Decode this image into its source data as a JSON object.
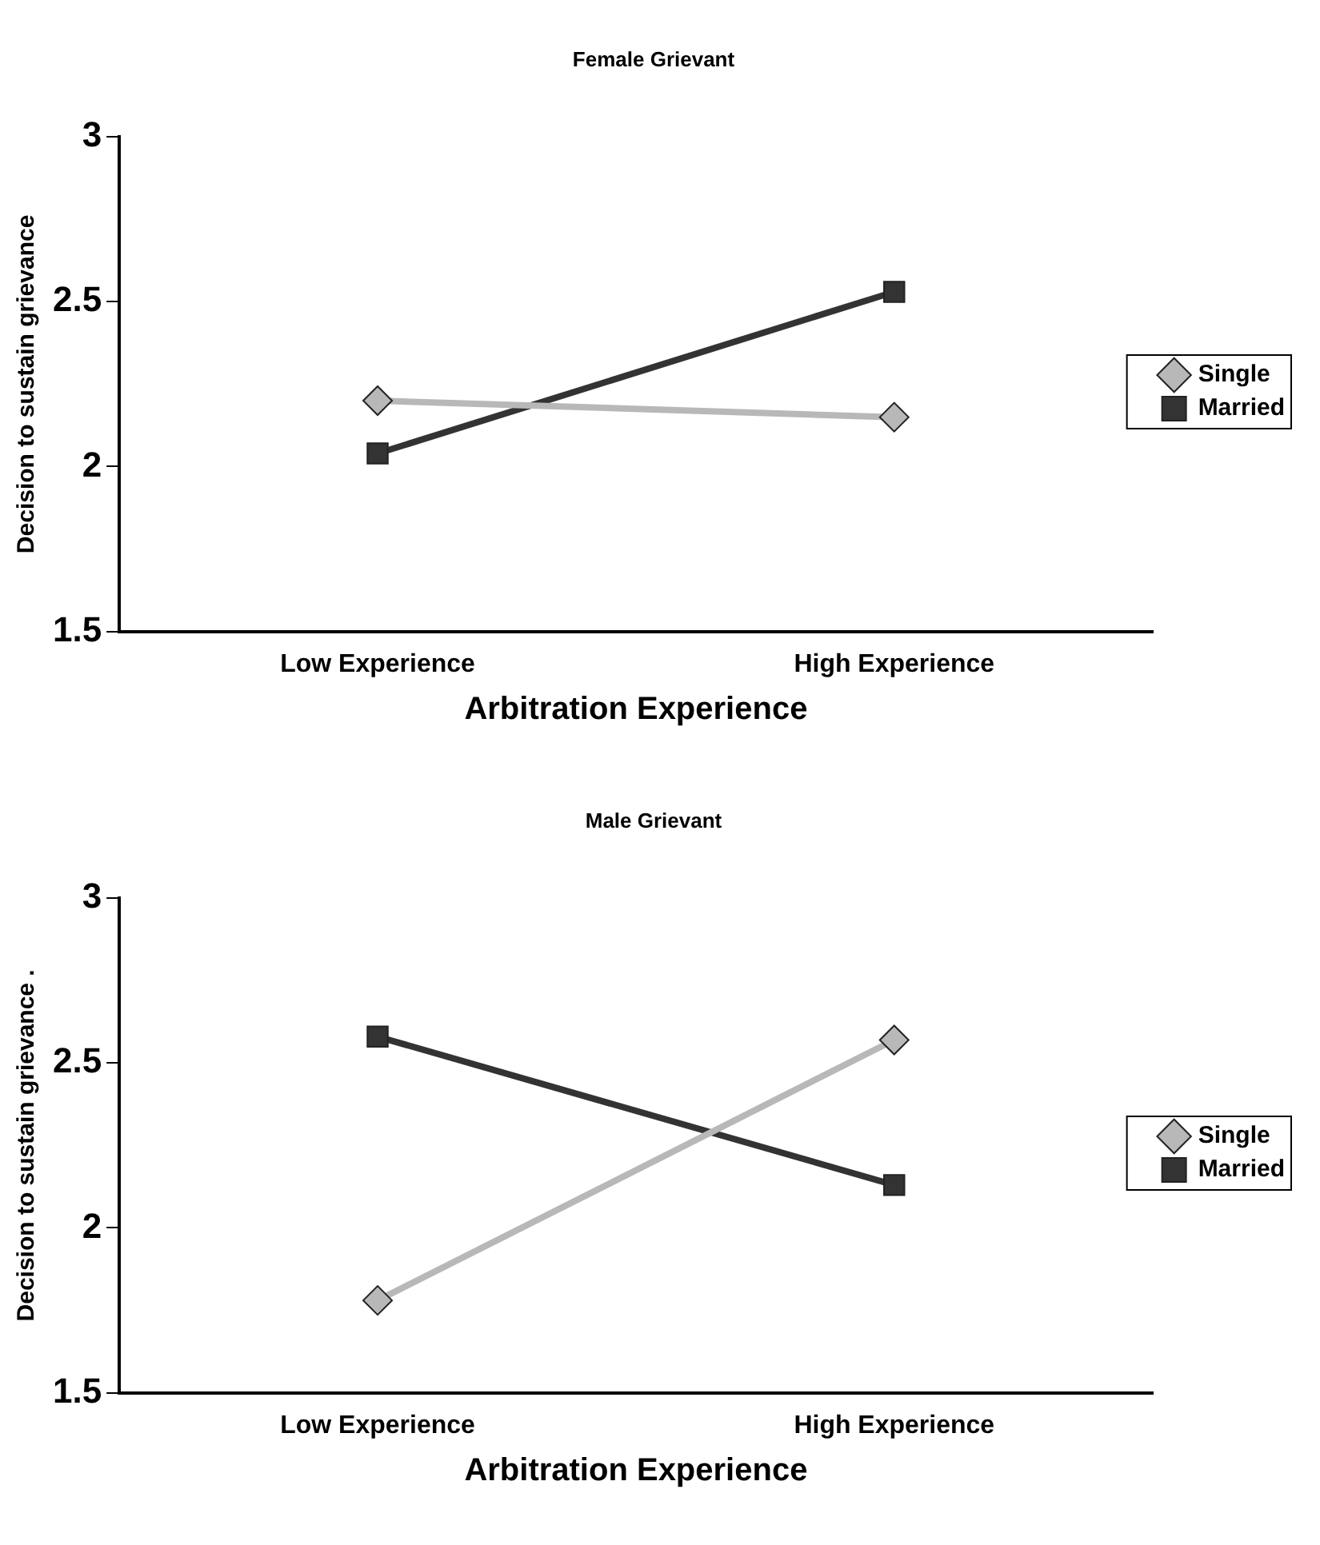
{
  "chart_data": [
    {
      "type": "line",
      "title": "Female Grievant",
      "xlabel": "Arbitration Experience",
      "ylabel": "Decision to sustain grievance",
      "categories": [
        "Low Experience",
        "High Experience"
      ],
      "ylim": [
        1.5,
        3
      ],
      "yticks": [
        1.5,
        2,
        2.5,
        3
      ],
      "grid": false,
      "legend": "right",
      "series": [
        {
          "name": "Single",
          "color": "#b8b8b8",
          "marker": "diamond",
          "values": [
            2.2,
            2.15
          ]
        },
        {
          "name": "Married",
          "color": "#333333",
          "marker": "square",
          "values": [
            2.04,
            2.53
          ]
        }
      ]
    },
    {
      "type": "line",
      "title": "Male Grievant",
      "xlabel": "Arbitration Experience",
      "ylabel": "Decision to sustain grievance .",
      "categories": [
        "Low Experience",
        "High Experience"
      ],
      "ylim": [
        1.5,
        3
      ],
      "yticks": [
        1.5,
        2,
        2.5,
        3
      ],
      "grid": false,
      "legend": "right",
      "series": [
        {
          "name": "Single",
          "color": "#b8b8b8",
          "marker": "diamond",
          "values": [
            1.78,
            2.57
          ]
        },
        {
          "name": "Married",
          "color": "#333333",
          "marker": "square",
          "values": [
            2.58,
            2.13
          ]
        }
      ]
    }
  ]
}
